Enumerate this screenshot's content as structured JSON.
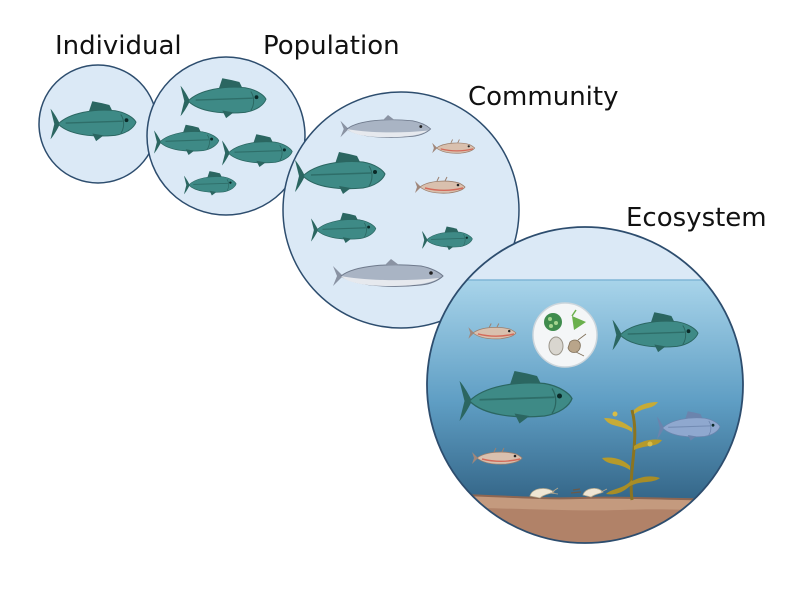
{
  "levels": {
    "individual": "Individual",
    "population": "Population",
    "community": "Community",
    "ecosystem": "Ecosystem"
  },
  "colors": {
    "circle_fill": "#dbe9f6",
    "circle_stroke": "#2d4d6e",
    "bass_body": "#3e8a86",
    "bass_dark": "#2b6661",
    "salmon_body": "#a9b4c4",
    "stickleback": "#d6b8a6",
    "water_top": "#a8d4ea",
    "water_bottom": "#1f4a6a",
    "seafloor": "#c49a7e",
    "kelp": "#b69a2a"
  },
  "icons": [
    "bass-fish-icon",
    "salmon-fish-icon",
    "stickleback-fish-icon",
    "plankton-icon",
    "kelp-icon",
    "shrimp-icon",
    "blue-bass-icon"
  ]
}
